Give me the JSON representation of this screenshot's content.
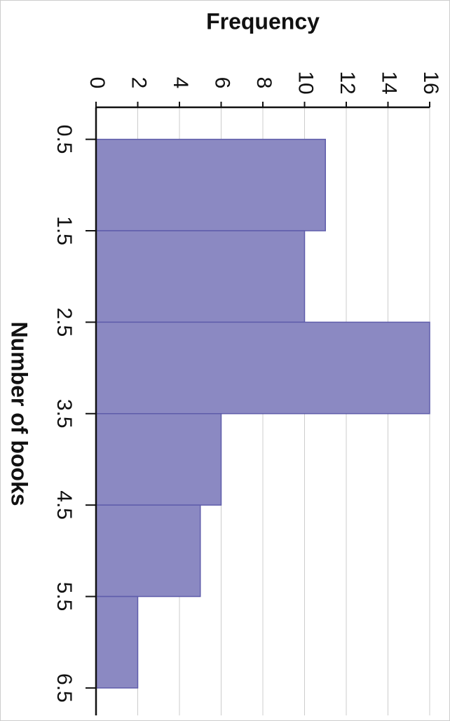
{
  "chart_data": {
    "type": "histogram",
    "orientation": "vertical-bins",
    "x_label": "Number of books",
    "y_label": "Frequency",
    "bins": [
      0.5,
      1.5,
      2.5,
      3.5,
      4.5,
      5.5,
      6.5
    ],
    "values": [
      11,
      10,
      16,
      6,
      5,
      2
    ],
    "color": "#8b89c2",
    "edge_color": "#5f5dab",
    "xlim": [
      0.15,
      6.8
    ],
    "ylim": [
      0,
      16
    ],
    "yticks": [
      0,
      2,
      4,
      6,
      8,
      10,
      12,
      14,
      16
    ],
    "grid": true
  }
}
